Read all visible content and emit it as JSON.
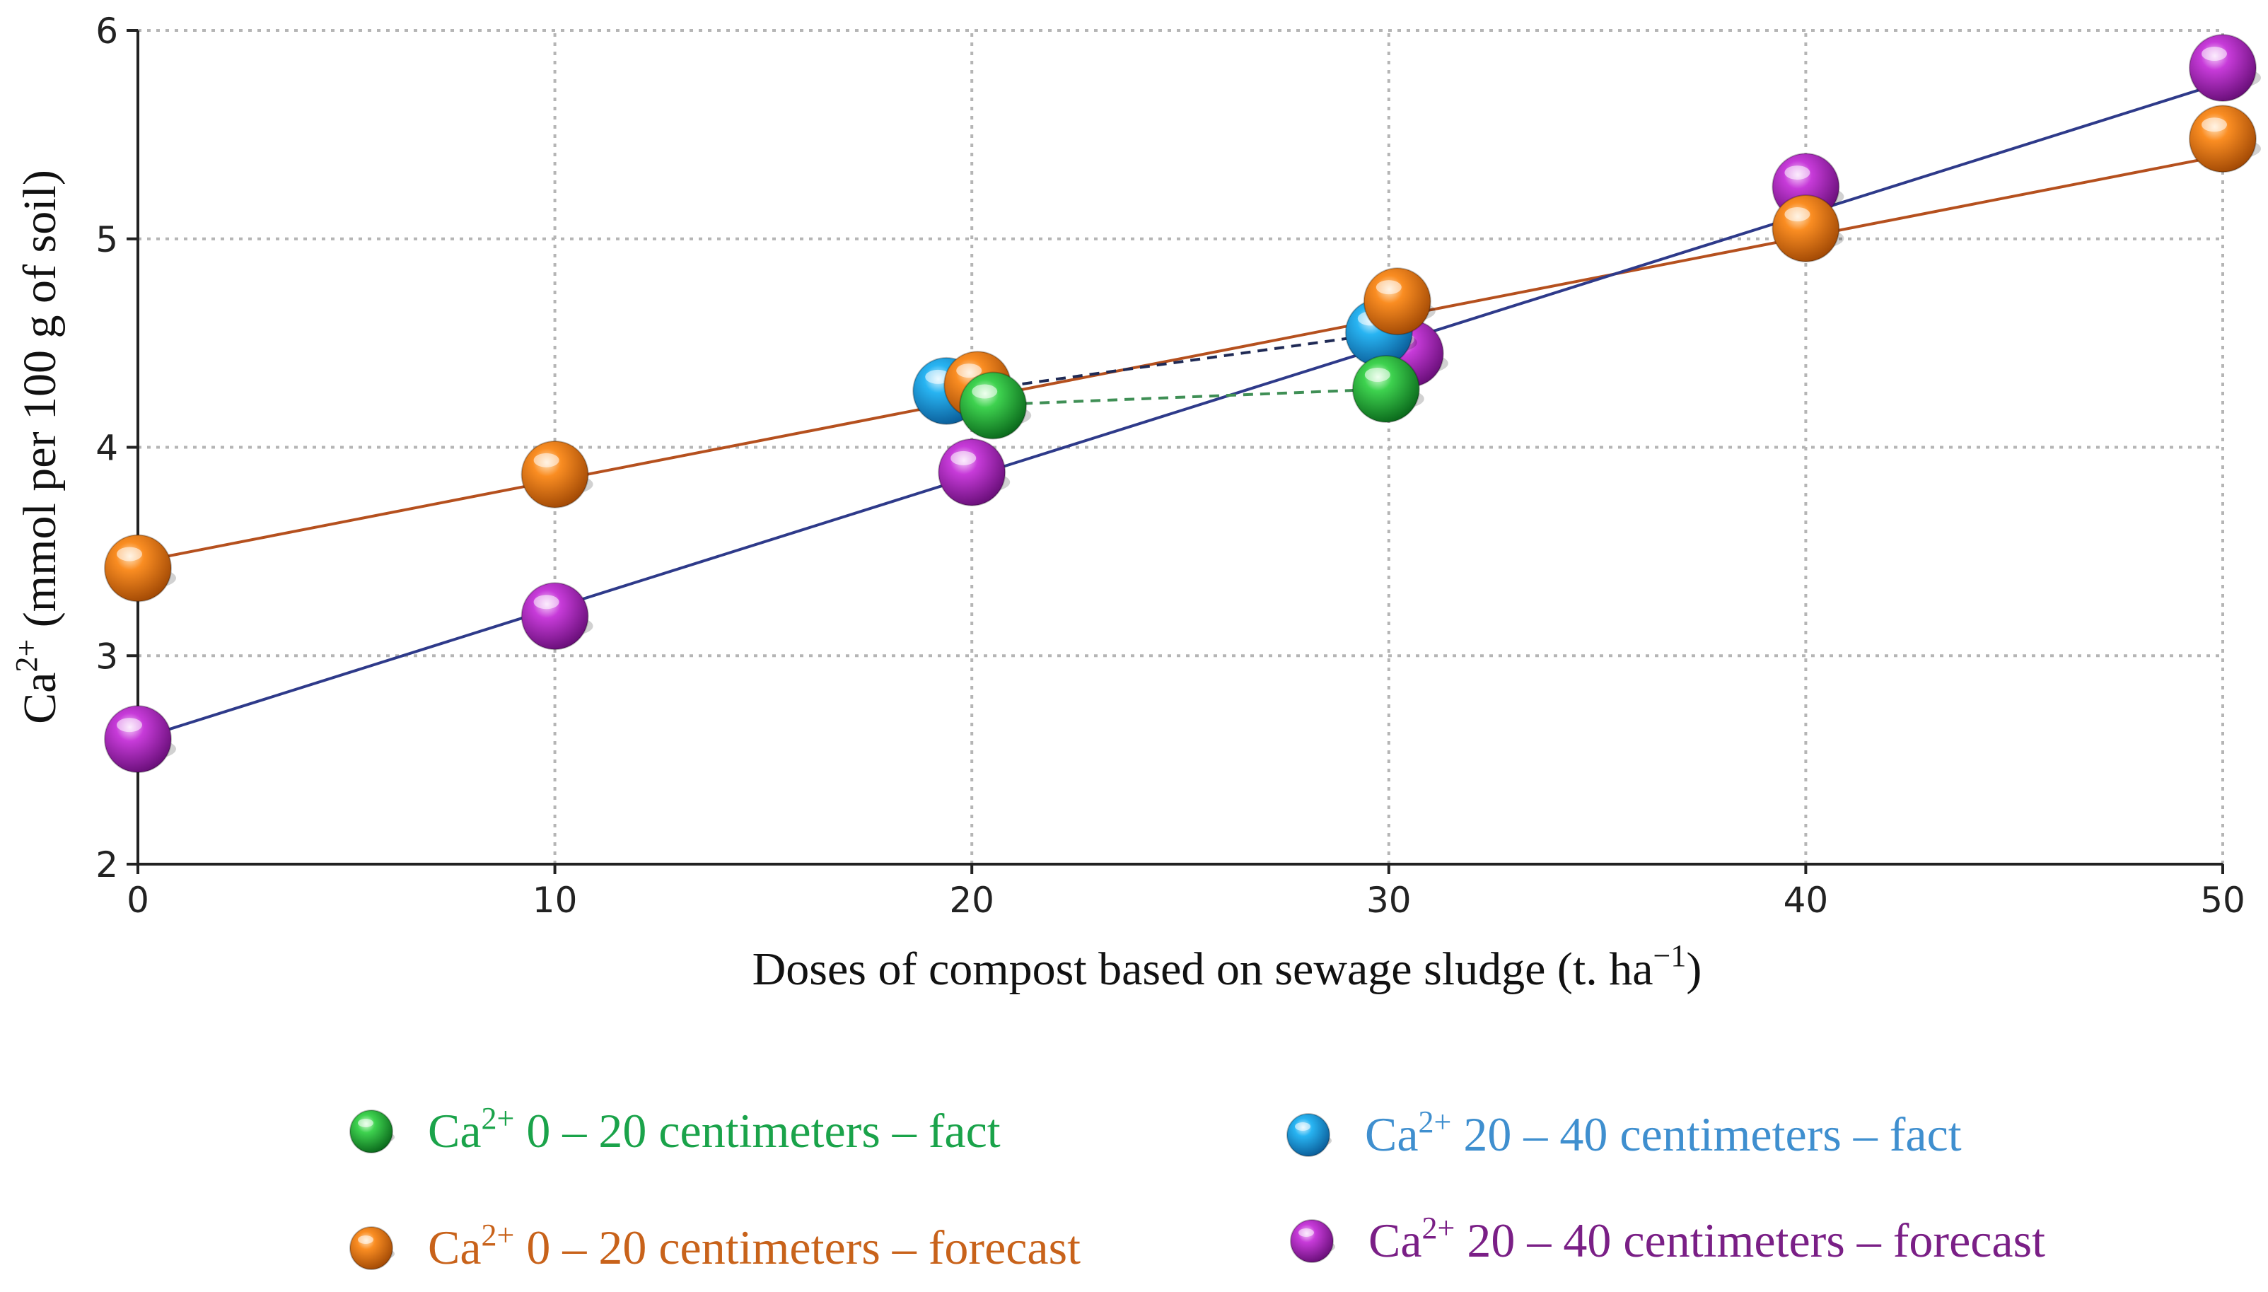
{
  "chart_data": {
    "type": "line",
    "x": [
      0,
      10,
      20,
      30,
      40,
      50
    ],
    "xlim": [
      0,
      50
    ],
    "ylim": [
      2,
      6
    ],
    "xticks": [
      "0",
      "10",
      "20",
      "30",
      "40",
      "50"
    ],
    "yticks": [
      "2",
      "3",
      "4",
      "5",
      "6"
    ],
    "grid": true,
    "xlabel": {
      "main": "Doses of compost based on sewage sludge (t. ha",
      "sup": "−1",
      "end": ")"
    },
    "ylabel": {
      "pre": "Ca",
      "sup": "2+",
      "main": " (mmol per 100 g of soil)"
    },
    "series": [
      {
        "key": "fact_0_20",
        "prefix": "Ca",
        "sup": "2+",
        "name": " 0 – 20 centimeters – fact",
        "color": "#1bb03a",
        "text_color": "#1aa34a",
        "line_style": "dashed",
        "points": [
          [
            20,
            4.2
          ],
          [
            30,
            4.28
          ]
        ]
      },
      {
        "key": "fact_20_40",
        "prefix": "Ca",
        "sup": "2+",
        "name": " 20 – 40 centimeters – fact",
        "color": "#1f9fe0",
        "text_color": "#3f8fcf",
        "line_style": "dashed",
        "points": [
          [
            20,
            4.27
          ],
          [
            30,
            4.55
          ]
        ]
      },
      {
        "key": "forecast_0_20",
        "prefix": "Ca",
        "sup": "2+",
        "name": " 0 – 20 centimeters – forecast",
        "color": "#f07d18",
        "text_color": "#c8621a",
        "line_style": "solid",
        "points": [
          [
            0,
            3.42
          ],
          [
            10,
            3.87
          ],
          [
            20,
            4.3
          ],
          [
            30,
            4.7
          ],
          [
            40,
            5.05
          ],
          [
            50,
            5.48
          ]
        ]
      },
      {
        "key": "forecast_20_40",
        "prefix": "Ca",
        "sup": "2+",
        "name": " 20 – 40 centimeters – forecast",
        "color": "#b52bc8",
        "text_color": "#7a1f86",
        "line_style": "solid",
        "points": [
          [
            0,
            2.6
          ],
          [
            10,
            3.19
          ],
          [
            20,
            3.88
          ],
          [
            30,
            4.45
          ],
          [
            40,
            5.25
          ],
          [
            50,
            5.82
          ]
        ]
      }
    ],
    "trend_lines": [
      {
        "key": "trend_0_20",
        "color": "#b5501e",
        "from": [
          0,
          3.45
        ],
        "to": [
          50,
          5.4
        ]
      },
      {
        "key": "trend_20_40",
        "color": "#2e3a8a",
        "from": [
          0,
          2.6
        ],
        "to": [
          50,
          5.75
        ]
      }
    ]
  }
}
